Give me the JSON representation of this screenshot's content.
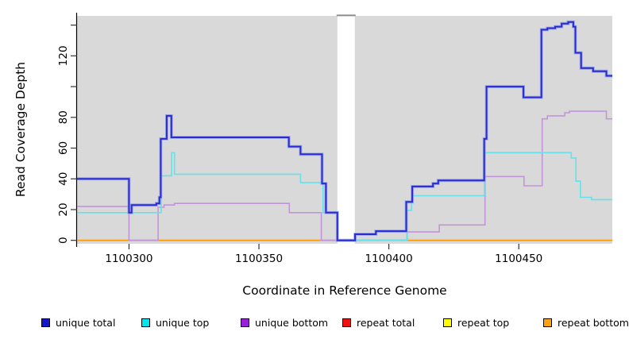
{
  "chart_data": {
    "type": "line",
    "subtype": "step-coverage",
    "title": "",
    "xlabel": "Coordinate in Reference Genome",
    "ylabel": "Read Coverage Depth",
    "xlim": [
      1100280,
      1100486
    ],
    "ylim": [
      0,
      146
    ],
    "grid": false,
    "legend_position": "bottom",
    "plot_bg": "#d9d9d9",
    "gap_band_color": "#ffffff",
    "gap_region": {
      "from": 1100380.2,
      "to": 1100386.9
    },
    "x_ticks": [
      {
        "v": 1100300,
        "label": "1100300"
      },
      {
        "v": 1100350,
        "label": "1100350"
      },
      {
        "v": 1100400,
        "label": "1100400"
      },
      {
        "v": 1100450,
        "label": "1100450"
      }
    ],
    "y_ticks": [
      {
        "v": 0,
        "label": "0"
      },
      {
        "v": 20,
        "label": "20"
      },
      {
        "v": 40,
        "label": "40"
      },
      {
        "v": 60,
        "label": "60"
      },
      {
        "v": 80,
        "label": "80"
      },
      {
        "v": 100,
        "label": ""
      },
      {
        "v": 120,
        "label": "120"
      },
      {
        "v": 140,
        "label": ""
      }
    ],
    "series": [
      {
        "name": "repeat total",
        "line_color": "#dd2222",
        "width": 1.5,
        "halo": false,
        "points": [
          [
            1100280,
            0
          ]
        ]
      },
      {
        "name": "repeat top",
        "line_color": "#ffff33",
        "width": 1.5,
        "halo": false,
        "points": [
          [
            1100280,
            0
          ]
        ]
      },
      {
        "name": "repeat bottom",
        "line_color": "#ff9d0a",
        "width": 1.8,
        "halo": false,
        "points": [
          [
            1100280,
            0
          ]
        ]
      },
      {
        "name": "unique bottom",
        "line_color": "#c295da",
        "width": 1.6,
        "halo": false,
        "points": [
          [
            1100280,
            22
          ],
          [
            1100300,
            0
          ],
          [
            1100311.2,
            21.5
          ],
          [
            1100313.5,
            23
          ],
          [
            1100317.5,
            24
          ],
          [
            1100361.7,
            18
          ],
          [
            1100374,
            0
          ],
          [
            1100407,
            5.5
          ],
          [
            1100419.4,
            10
          ],
          [
            1100437,
            41.5
          ],
          [
            1100452,
            35.5
          ],
          [
            1100459,
            79
          ],
          [
            1100461,
            81
          ],
          [
            1100467.7,
            83
          ],
          [
            1100469.5,
            84
          ],
          [
            1100483.7,
            79
          ]
        ]
      },
      {
        "name": "unique top",
        "line_color": "#63e2ea",
        "width": 1.6,
        "halo": false,
        "points": [
          [
            1100280,
            18
          ],
          [
            1100312.4,
            42
          ],
          [
            1100316.4,
            57
          ],
          [
            1100317.5,
            43
          ],
          [
            1100366,
            37.5
          ],
          [
            1100374.7,
            18
          ],
          [
            1100380.2,
            0
          ],
          [
            1100407,
            19.5
          ],
          [
            1100408.7,
            29
          ],
          [
            1100436.8,
            57
          ],
          [
            1100470.2,
            53.5
          ],
          [
            1100472,
            38.5
          ],
          [
            1100473.7,
            28
          ],
          [
            1100478,
            26.5
          ]
        ]
      },
      {
        "name": "unique total",
        "line_color": "#2b2bd1",
        "halo_color": "#8f9fe8",
        "width": 2,
        "halo": true,
        "points": [
          [
            1100280,
            40
          ],
          [
            1100300,
            18
          ],
          [
            1100301,
            23
          ],
          [
            1100310.5,
            24
          ],
          [
            1100311.7,
            28
          ],
          [
            1100312.2,
            66
          ],
          [
            1100314.5,
            81
          ],
          [
            1100316.3,
            67
          ],
          [
            1100361.5,
            61
          ],
          [
            1100366,
            56
          ],
          [
            1100374.3,
            37
          ],
          [
            1100375.8,
            18
          ],
          [
            1100380.2,
            0
          ],
          [
            1100387,
            4
          ],
          [
            1100395,
            6
          ],
          [
            1100406.7,
            25
          ],
          [
            1100409,
            35
          ],
          [
            1100417,
            37
          ],
          [
            1100419,
            39
          ],
          [
            1100436.7,
            66
          ],
          [
            1100437.6,
            100
          ],
          [
            1100451.8,
            93
          ],
          [
            1100458.7,
            137
          ],
          [
            1100461,
            138
          ],
          [
            1100464,
            139
          ],
          [
            1100466.5,
            141
          ],
          [
            1100469,
            142
          ],
          [
            1100471,
            139
          ],
          [
            1100471.8,
            122
          ],
          [
            1100474,
            112
          ],
          [
            1100478.6,
            110
          ],
          [
            1100483.7,
            107
          ]
        ]
      }
    ],
    "legend": [
      {
        "label": "unique total",
        "color": "#1515cc"
      },
      {
        "label": "unique top",
        "color": "#00e5ee"
      },
      {
        "label": "unique bottom",
        "color": "#991fd9"
      },
      {
        "label": "repeat total",
        "color": "#ee1111"
      },
      {
        "label": "repeat top",
        "color": "#ffff00"
      },
      {
        "label": "repeat bottom",
        "color": "#ffa20f"
      }
    ]
  }
}
